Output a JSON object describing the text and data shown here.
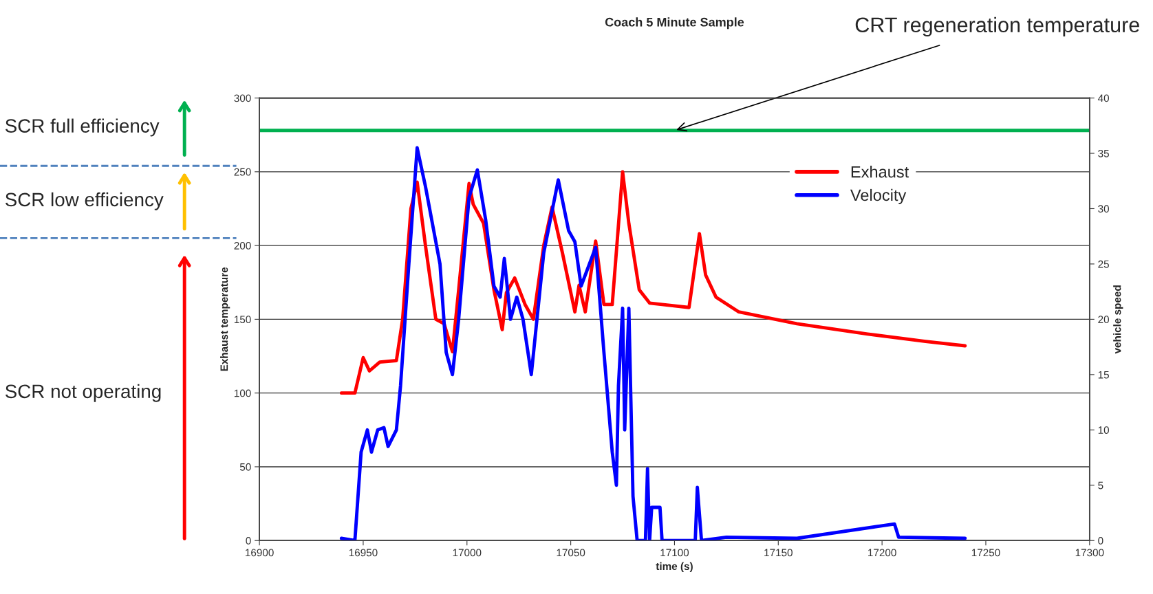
{
  "chart_data": {
    "type": "line",
    "title": "Coach 5 Minute Sample",
    "xlabel": "time (s)",
    "ylabel": "Exhaust temperature",
    "y2label": "vehicle speed",
    "series": [
      {
        "name": "Exhaust",
        "color": "#ff0000",
        "x": [
          16939.5,
          16946,
          16950,
          16953,
          16958,
          16966,
          16969,
          16973,
          16976,
          16980,
          16985,
          16989,
          16993,
          16996,
          17001,
          17003,
          17008,
          17013,
          17017,
          17019,
          17023,
          17028,
          17032,
          17037,
          17041,
          17046,
          17052,
          17054,
          17057,
          17062,
          17066,
          17070,
          17075,
          17078,
          17083,
          17088,
          17094,
          17107,
          17112,
          17115,
          17120,
          17131,
          17159,
          17193,
          17221,
          17240
        ],
        "values": [
          100,
          100,
          124,
          115,
          121,
          122,
          150,
          225,
          243,
          200,
          150,
          147,
          128,
          170,
          242,
          228,
          215,
          170,
          143,
          168,
          178,
          160,
          150,
          200,
          226,
          195,
          155,
          173,
          155,
          203,
          160,
          160,
          250,
          215,
          170,
          161,
          160,
          158,
          208,
          180,
          165,
          155,
          147,
          140,
          135,
          132
        ]
      },
      {
        "name": "Velocity",
        "color": "#0000ff",
        "axis": "y2",
        "x": [
          16939.5,
          16946,
          16949,
          16952,
          16954,
          16957,
          16960,
          16962,
          16966,
          16968,
          16972,
          16976,
          16980,
          16984,
          16987,
          16990,
          16993,
          16996,
          17001,
          17005,
          17009,
          17013,
          17016,
          17018,
          17021,
          17024,
          17027,
          17031,
          17037,
          17044,
          17049,
          17052,
          17055,
          17062,
          17066,
          17070,
          17072,
          17073,
          17075,
          17076,
          17078,
          17080,
          17082,
          17086,
          17087,
          17088,
          17089,
          17093,
          17094,
          17110,
          17111,
          17113,
          17125,
          17159,
          17206,
          17208,
          17240
        ],
        "values": [
          0.2,
          0,
          8,
          10,
          8,
          10,
          10.2,
          8.5,
          10,
          14,
          25,
          35.5,
          32,
          28,
          25,
          17,
          15,
          20,
          31,
          33.5,
          29,
          23,
          22,
          25.5,
          20,
          22,
          20,
          15,
          26,
          32.6,
          28,
          27,
          23,
          26.5,
          17,
          8,
          5,
          14,
          21,
          10,
          21,
          4,
          0,
          0,
          6.5,
          0,
          3,
          3,
          0,
          0,
          4.8,
          0,
          0.3,
          0.2,
          1.5,
          0.3,
          0.2
        ]
      }
    ],
    "xlim": [
      16900,
      17300
    ],
    "xticks": [
      16900,
      16950,
      17000,
      17050,
      17100,
      17150,
      17200,
      17250,
      17300
    ],
    "ylim": [
      0,
      300
    ],
    "yticks": [
      0,
      50,
      100,
      150,
      200,
      250,
      300
    ],
    "y2lim": [
      0,
      40
    ],
    "y2ticks": [
      0,
      5,
      10,
      15,
      20,
      25,
      30,
      35,
      40
    ],
    "ref_lines": [
      {
        "axis": "y",
        "value": 278,
        "label": "CRT regeneration temperature",
        "color": "#00b050"
      }
    ],
    "annotations": [
      "SCR full efficiency",
      "SCR low efficiency",
      "SCR not operating"
    ],
    "grid": "y",
    "legend": "top right",
    "line_style": "solid"
  }
}
